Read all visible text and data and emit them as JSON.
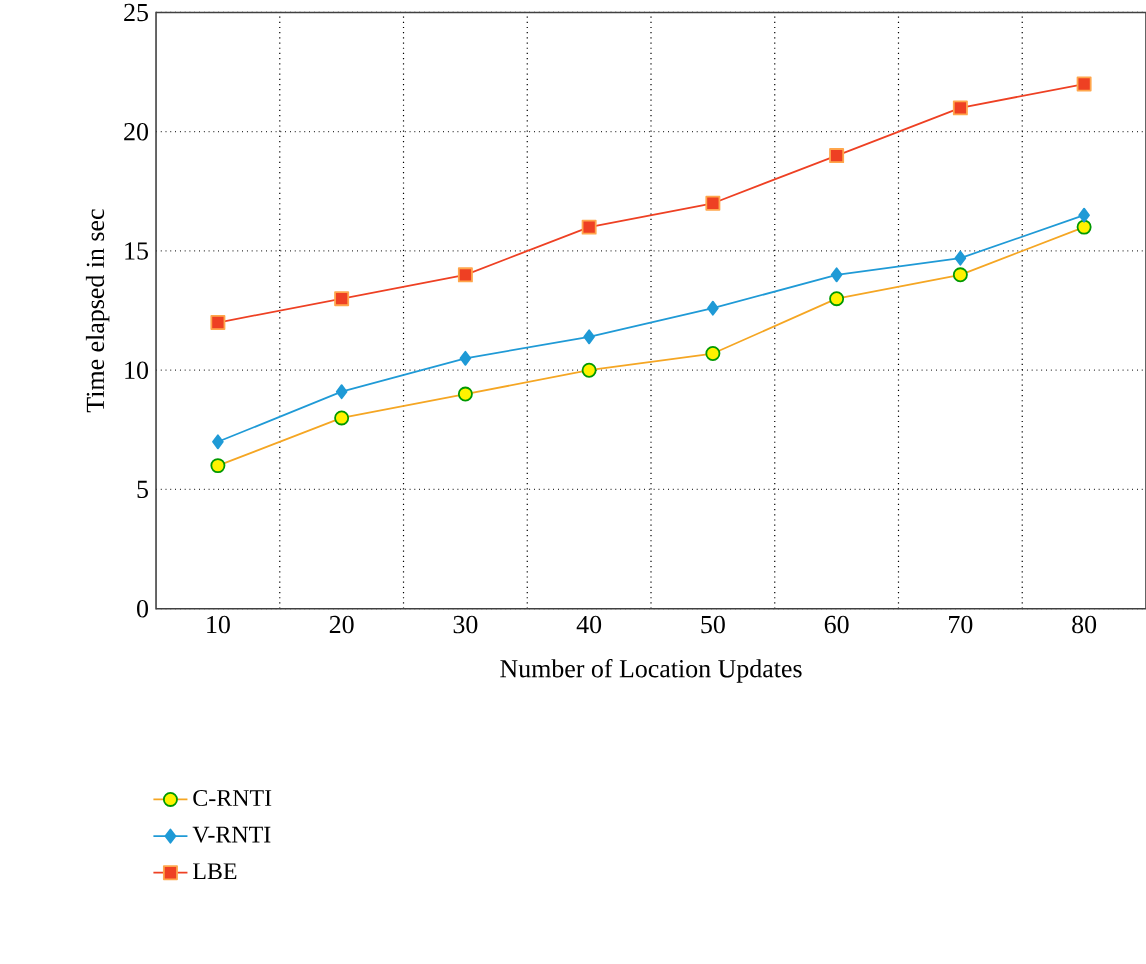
{
  "chart_data": {
    "type": "line",
    "xlabel": "Number of Location Updates",
    "ylabel": "Time elapsed in sec",
    "categories": [
      "10",
      "20",
      "30",
      "40",
      "50",
      "60",
      "70",
      "80"
    ],
    "series": [
      {
        "name": "C-RNTI",
        "color": "#f5a623",
        "marker": "circle",
        "values": [
          6,
          8,
          9,
          10,
          10.7,
          13,
          14,
          16
        ]
      },
      {
        "name": "V-RNTI",
        "color": "#1f9ad6",
        "marker": "diamond",
        "values": [
          7,
          9.1,
          10.5,
          11.4,
          12.6,
          14,
          14.7,
          16.5
        ]
      },
      {
        "name": "LBE",
        "color": "#ee4023",
        "marker": "square",
        "values": [
          12,
          13,
          14,
          16,
          17,
          19,
          21,
          22
        ]
      }
    ],
    "ylim": [
      0,
      25
    ],
    "yticks": [
      0,
      5,
      10,
      15,
      20,
      25
    ],
    "grid": true,
    "legend": "bottom",
    "line_style": "solid"
  }
}
